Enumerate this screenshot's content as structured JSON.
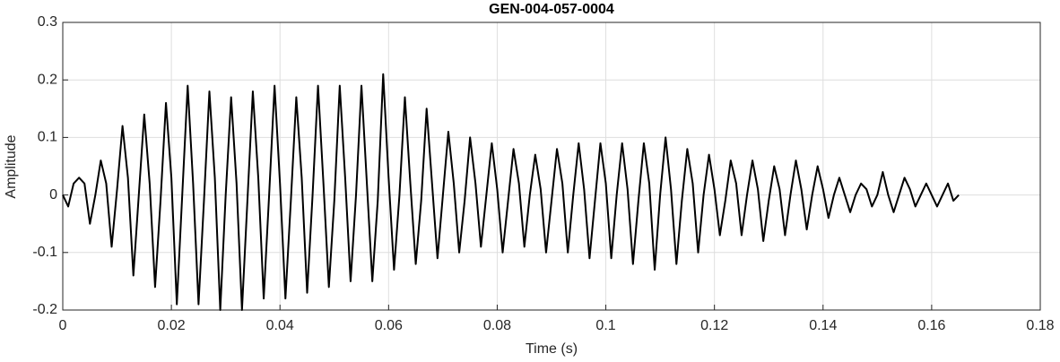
{
  "chart_data": {
    "type": "line",
    "title": "GEN-004-057-0004",
    "x_label": "Time (s)",
    "y_label": "Amplitude",
    "color": "#000000",
    "grid": true,
    "xlim": [
      0,
      0.18
    ],
    "xticks": [
      0,
      0.02,
      0.04,
      0.06,
      0.08,
      0.1,
      0.12,
      0.14,
      0.16,
      0.18
    ],
    "ylim": [
      -0.2,
      0.3
    ],
    "yticks": [
      -0.2,
      -0.1,
      0,
      0.1,
      0.2,
      0.3
    ],
    "x": [
      0,
      0.001,
      0.002,
      0.003,
      0.004,
      0.005,
      0.006,
      0.007,
      0.008,
      0.009,
      0.01,
      0.011,
      0.012,
      0.013,
      0.014,
      0.015,
      0.016,
      0.017,
      0.018,
      0.019,
      0.02,
      0.021,
      0.022,
      0.023,
      0.024,
      0.025,
      0.026,
      0.027,
      0.028,
      0.029,
      0.03,
      0.031,
      0.032,
      0.033,
      0.034,
      0.035,
      0.036,
      0.037,
      0.038,
      0.039,
      0.04,
      0.041,
      0.042,
      0.043,
      0.044,
      0.045,
      0.046,
      0.047,
      0.048,
      0.049,
      0.05,
      0.051,
      0.052,
      0.053,
      0.054,
      0.055,
      0.056,
      0.057,
      0.058,
      0.059,
      0.06,
      0.061,
      0.062,
      0.063,
      0.064,
      0.065,
      0.066,
      0.067,
      0.068,
      0.069,
      0.07,
      0.071,
      0.072,
      0.073,
      0.074,
      0.075,
      0.076,
      0.077,
      0.078,
      0.079,
      0.08,
      0.081,
      0.082,
      0.083,
      0.084,
      0.085,
      0.086,
      0.087,
      0.088,
      0.089,
      0.09,
      0.091,
      0.092,
      0.093,
      0.094,
      0.095,
      0.096,
      0.097,
      0.098,
      0.099,
      0.1,
      0.101,
      0.102,
      0.103,
      0.104,
      0.105,
      0.106,
      0.107,
      0.108,
      0.109,
      0.11,
      0.111,
      0.112,
      0.113,
      0.114,
      0.115,
      0.116,
      0.117,
      0.118,
      0.119,
      0.12,
      0.121,
      0.122,
      0.123,
      0.124,
      0.125,
      0.126,
      0.127,
      0.128,
      0.129,
      0.13,
      0.131,
      0.132,
      0.133,
      0.134,
      0.135,
      0.136,
      0.137,
      0.138,
      0.139,
      0.14,
      0.141,
      0.142,
      0.143,
      0.144,
      0.145,
      0.146,
      0.147,
      0.148,
      0.149,
      0.15,
      0.151,
      0.152,
      0.153,
      0.154,
      0.155,
      0.156,
      0.157,
      0.158,
      0.159,
      0.16,
      0.161,
      0.162,
      0.163,
      0.164,
      0.165
    ],
    "values": [
      0,
      -0.02,
      0.02,
      0.03,
      0.02,
      -0.05,
      0,
      0.06,
      0.02,
      -0.09,
      0.01,
      0.12,
      0.03,
      -0.14,
      0,
      0.14,
      0.02,
      -0.16,
      -0.01,
      0.16,
      0.03,
      -0.19,
      0,
      0.19,
      0.02,
      -0.19,
      -0.01,
      0.18,
      0.03,
      -0.2,
      0,
      0.17,
      0.02,
      -0.2,
      -0.01,
      0.18,
      0.03,
      -0.18,
      0,
      0.19,
      0.02,
      -0.18,
      -0.01,
      0.17,
      0.03,
      -0.17,
      0,
      0.19,
      0.02,
      -0.16,
      -0.01,
      0.19,
      0.03,
      -0.15,
      0,
      0.19,
      0.02,
      -0.15,
      -0.01,
      0.21,
      0.03,
      -0.13,
      0,
      0.17,
      0.02,
      -0.12,
      -0.01,
      0.15,
      0.02,
      -0.11,
      0,
      0.11,
      0.02,
      -0.1,
      -0.01,
      0.1,
      0.02,
      -0.09,
      0,
      0.09,
      0.01,
      -0.1,
      -0.01,
      0.08,
      0.02,
      -0.09,
      0,
      0.07,
      0.01,
      -0.1,
      -0.01,
      0.08,
      0.02,
      -0.1,
      0,
      0.09,
      0.01,
      -0.11,
      -0.01,
      0.09,
      0.02,
      -0.11,
      0,
      0.09,
      0.01,
      -0.12,
      -0.01,
      0.09,
      0.02,
      -0.13,
      0,
      0.1,
      0.01,
      -0.12,
      -0.01,
      0.08,
      0.02,
      -0.1,
      0,
      0.07,
      0.01,
      -0.07,
      -0.01,
      0.06,
      0.02,
      -0.07,
      0,
      0.06,
      0.01,
      -0.08,
      -0.01,
      0.05,
      0.01,
      -0.07,
      0,
      0.06,
      0.01,
      -0.06,
      0,
      0.05,
      0.01,
      -0.04,
      0,
      0.03,
      0,
      -0.03,
      0,
      0.02,
      0.01,
      -0.02,
      0,
      0.04,
      0,
      -0.03,
      0,
      0.03,
      0.01,
      -0.02,
      0,
      0.02,
      0,
      -0.02,
      0,
      0.02,
      -0.01,
      0
    ]
  }
}
